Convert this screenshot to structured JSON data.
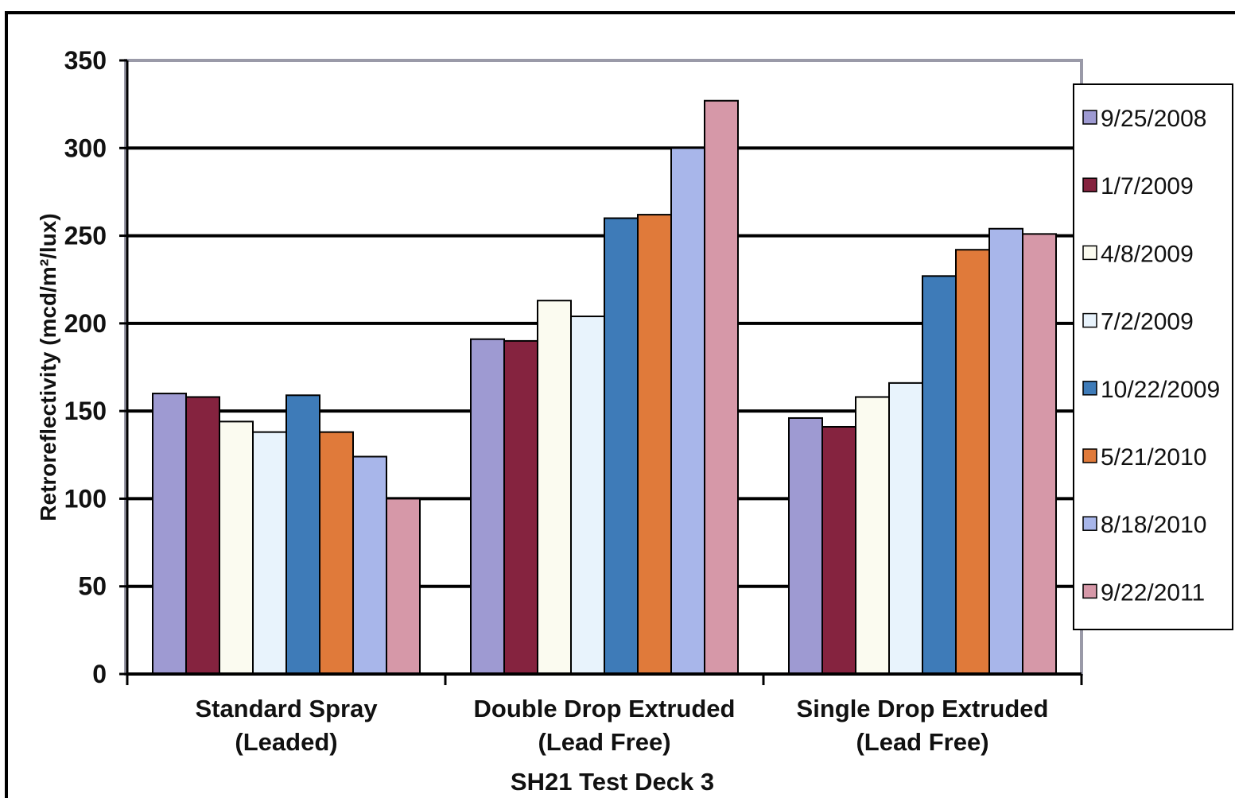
{
  "chart_data": {
    "type": "bar",
    "title": "",
    "xlabel": "SH21 Test Deck 3",
    "ylabel": "Retroreflectivity (mcd/m²/lux)",
    "ylim": [
      0,
      350
    ],
    "yticks": [
      0,
      50,
      100,
      150,
      200,
      250,
      300,
      350
    ],
    "grid": true,
    "legend_position": "right",
    "categories": [
      [
        "Standard Spray",
        "(Leaded)"
      ],
      [
        "Double Drop Extruded",
        "(Lead Free)"
      ],
      [
        "Single Drop Extruded",
        "(Lead Free)"
      ]
    ],
    "series": [
      {
        "name": "9/25/2008",
        "color": "#9E9AD2",
        "values": [
          160,
          191,
          146
        ]
      },
      {
        "name": "1/7/2009",
        "color": "#85233F",
        "values": [
          158,
          190,
          141
        ]
      },
      {
        "name": "4/8/2009",
        "color": "#FBFBF0",
        "values": [
          144,
          213,
          158
        ]
      },
      {
        "name": "7/2/2009",
        "color": "#E8F3FC",
        "values": [
          138,
          204,
          166
        ]
      },
      {
        "name": "10/22/2009",
        "color": "#3E7BB8",
        "values": [
          159,
          260,
          227
        ]
      },
      {
        "name": "5/21/2010",
        "color": "#E07A3A",
        "values": [
          138,
          262,
          242
        ]
      },
      {
        "name": "8/18/2010",
        "color": "#A8B6EA",
        "values": [
          124,
          300,
          254
        ]
      },
      {
        "name": "9/22/2011",
        "color": "#D698A8",
        "values": [
          100,
          327,
          251
        ]
      }
    ]
  }
}
